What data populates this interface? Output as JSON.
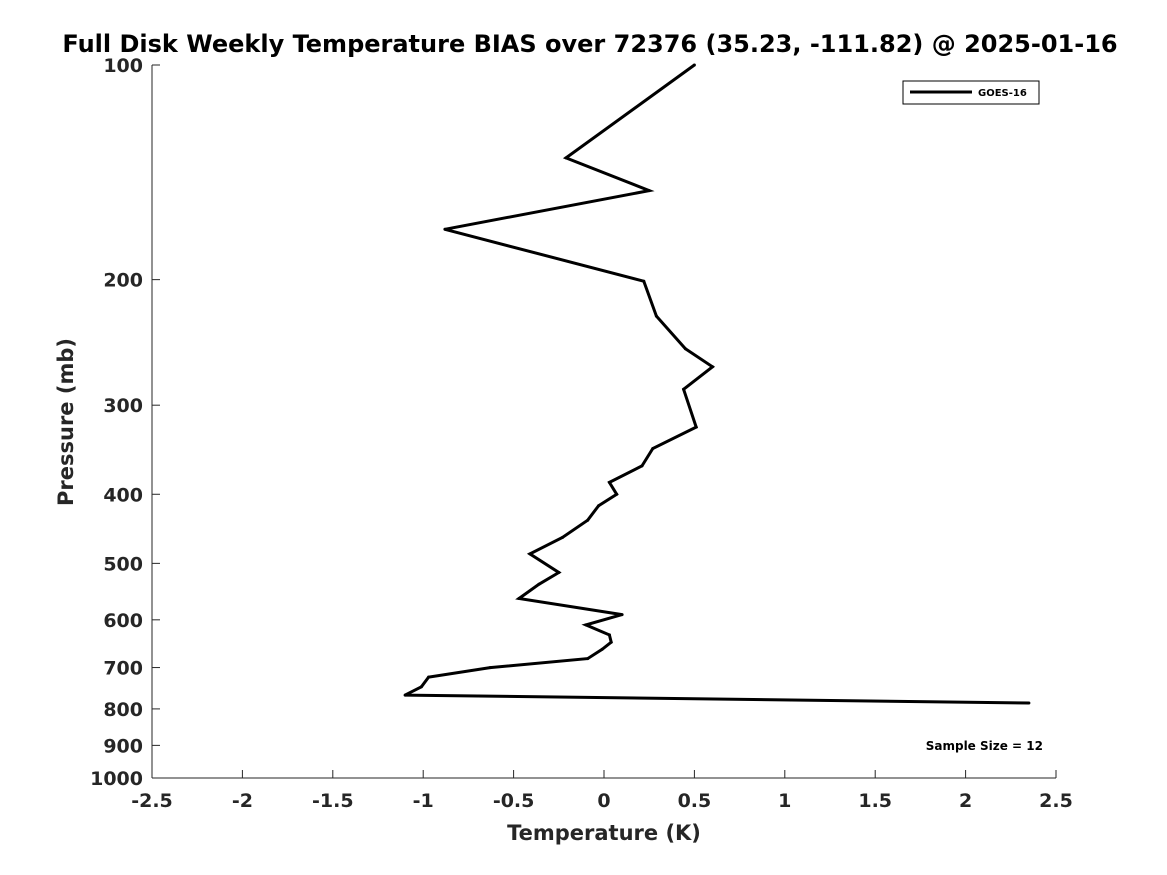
{
  "chart_data": {
    "type": "line",
    "title": "Full Disk Weekly Temperature BIAS over 72376 (35.23, -111.82) @ 2025-01-16",
    "xlabel": "Temperature (K)",
    "ylabel": "Pressure (mb)",
    "xlim": [
      -2.5,
      2.5
    ],
    "ylim": [
      1000,
      100
    ],
    "y_scale": "log",
    "y_reversed": true,
    "xticks": [
      -2.5,
      -2,
      -1.5,
      -1,
      -0.5,
      0,
      0.5,
      1,
      1.5,
      2,
      2.5
    ],
    "xtick_labels": [
      "-2.5",
      "-2",
      "-1.5",
      "-1",
      "-0.5",
      "0",
      "0.5",
      "1",
      "1.5",
      "2",
      "2.5"
    ],
    "yticks": [
      100,
      200,
      300,
      400,
      500,
      600,
      700,
      800,
      900,
      1000
    ],
    "ytick_labels": [
      "100",
      "200",
      "300",
      "400",
      "500",
      "600",
      "700",
      "800",
      "900",
      "1000"
    ],
    "grid": false,
    "legend_position": "top-right",
    "annotation": "Sample Size = 12",
    "series": [
      {
        "name": "GOES-16",
        "color": "#000000",
        "points": [
          [
            0.5,
            100
          ],
          [
            -0.21,
            135
          ],
          [
            0.25,
            150
          ],
          [
            -0.88,
            170
          ],
          [
            0.22,
            201
          ],
          [
            0.29,
            225
          ],
          [
            0.45,
            250
          ],
          [
            0.6,
            265
          ],
          [
            0.44,
            285
          ],
          [
            0.51,
            322
          ],
          [
            0.27,
            345
          ],
          [
            0.21,
            365
          ],
          [
            0.03,
            385
          ],
          [
            0.07,
            400
          ],
          [
            -0.03,
            415
          ],
          [
            -0.09,
            435
          ],
          [
            -0.23,
            460
          ],
          [
            -0.41,
            485
          ],
          [
            -0.25,
            515
          ],
          [
            -0.36,
            535
          ],
          [
            -0.47,
            560
          ],
          [
            0.1,
            590
          ],
          [
            -0.1,
            610
          ],
          [
            0.03,
            630
          ],
          [
            0.04,
            645
          ],
          [
            -0.01,
            660
          ],
          [
            -0.09,
            680
          ],
          [
            -0.63,
            700
          ],
          [
            -0.97,
            722
          ],
          [
            -1.01,
            745
          ],
          [
            -1.1,
            765
          ],
          [
            2.35,
            785
          ]
        ]
      }
    ]
  }
}
